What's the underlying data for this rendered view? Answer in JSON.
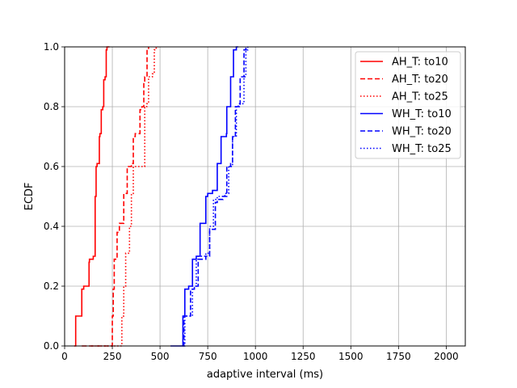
{
  "chart_data": {
    "type": "line",
    "title": "",
    "xlabel": "adaptive interval (ms)",
    "ylabel": "ECDF",
    "xlim": [
      0,
      2100
    ],
    "ylim": [
      0,
      1.0
    ],
    "x_ticks": [
      0,
      250,
      500,
      750,
      1000,
      1250,
      1500,
      1750,
      2000
    ],
    "y_ticks": [
      0.0,
      0.2,
      0.4,
      0.6,
      0.8,
      1.0
    ],
    "x_tick_labels": [
      "0",
      "250",
      "500",
      "750",
      "1000",
      "1250",
      "1500",
      "1750",
      "2000"
    ],
    "y_tick_labels": [
      "0.0",
      "0.2",
      "0.4",
      "0.6",
      "0.8",
      "1.0"
    ],
    "grid": true,
    "legend_position": "top-right",
    "series": [
      {
        "name": "AH_T: to10",
        "color": "#ff0000",
        "dash": "solid",
        "x": [
          50,
          58,
          90,
          100,
          128,
          130,
          150,
          160,
          165,
          170,
          182,
          185,
          192,
          200,
          205,
          212,
          218,
          222,
          230,
          235
        ],
        "y": [
          0.0,
          0.1,
          0.19,
          0.2,
          0.28,
          0.29,
          0.3,
          0.5,
          0.6,
          0.61,
          0.7,
          0.71,
          0.79,
          0.8,
          0.89,
          0.9,
          0.99,
          1.0,
          1.0,
          1.0
        ]
      },
      {
        "name": "AH_T: to20",
        "color": "#ff0000",
        "dash": "dashed",
        "x": [
          90,
          250,
          255,
          260,
          275,
          287,
          310,
          328,
          350,
          360,
          370,
          395,
          405,
          415,
          420,
          432,
          440
        ],
        "y": [
          0.0,
          0.1,
          0.19,
          0.29,
          0.38,
          0.41,
          0.51,
          0.6,
          0.61,
          0.7,
          0.71,
          0.79,
          0.8,
          0.88,
          0.9,
          0.99,
          1.0
        ]
      },
      {
        "name": "AH_T: to25",
        "color": "#ff0000",
        "dash": "dotted",
        "x": [
          140,
          300,
          310,
          320,
          340,
          350,
          360,
          420,
          430,
          440,
          460,
          470,
          480,
          488
        ],
        "y": [
          0.0,
          0.1,
          0.2,
          0.31,
          0.4,
          0.51,
          0.6,
          0.8,
          0.81,
          0.9,
          0.91,
          0.99,
          1.0,
          1.0
        ]
      },
      {
        "name": "WH_T: to10",
        "color": "#0000ff",
        "dash": "solid",
        "x": [
          555,
          620,
          630,
          650,
          670,
          690,
          710,
          740,
          750,
          775,
          800,
          820,
          848,
          850,
          870,
          885,
          900,
          910
        ],
        "y": [
          0.0,
          0.1,
          0.19,
          0.2,
          0.29,
          0.3,
          0.41,
          0.5,
          0.51,
          0.52,
          0.61,
          0.7,
          0.71,
          0.8,
          0.9,
          0.99,
          1.0,
          1.0
        ]
      },
      {
        "name": "WH_T: to20",
        "color": "#0000ff",
        "dash": "dashed",
        "x": [
          620,
          625,
          660,
          680,
          700,
          740,
          760,
          790,
          800,
          830,
          850,
          870,
          880,
          895,
          910,
          920,
          940,
          950
        ],
        "y": [
          0.0,
          0.1,
          0.19,
          0.2,
          0.29,
          0.3,
          0.39,
          0.48,
          0.49,
          0.5,
          0.6,
          0.61,
          0.7,
          0.8,
          0.81,
          0.9,
          0.99,
          1.0
        ]
      },
      {
        "name": "WH_T: to25",
        "color": "#0000ff",
        "dash": "dotted",
        "x": [
          625,
          630,
          670,
          690,
          700,
          740,
          760,
          780,
          800,
          840,
          860,
          880,
          900,
          920,
          940,
          950,
          960
        ],
        "y": [
          0.0,
          0.1,
          0.2,
          0.29,
          0.3,
          0.31,
          0.4,
          0.49,
          0.5,
          0.51,
          0.6,
          0.7,
          0.8,
          0.81,
          0.9,
          0.99,
          1.0
        ]
      }
    ]
  }
}
